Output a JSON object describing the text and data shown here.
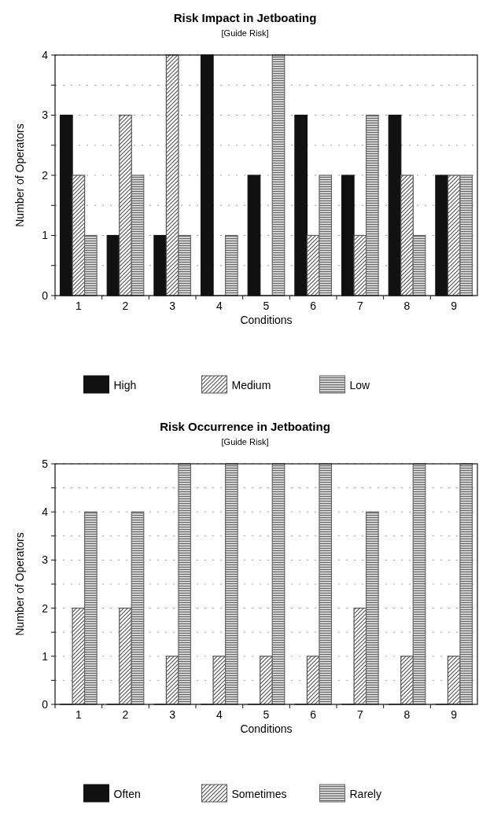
{
  "chart_data": [
    {
      "type": "bar",
      "title": "Risk Impact in Jetboating",
      "subtitle": "[Guide Risk]",
      "xlabel": "Conditions",
      "ylabel": "Number of Operators",
      "categories": [
        "1",
        "2",
        "3",
        "4",
        "5",
        "6",
        "7",
        "8",
        "9"
      ],
      "series": [
        {
          "name": "High",
          "color": "#111111",
          "values": [
            3,
            1,
            1,
            4,
            2,
            3,
            2,
            3,
            2
          ]
        },
        {
          "name": "Medium",
          "color": "#555555",
          "values": [
            2,
            3,
            4,
            0,
            0,
            1,
            1,
            2,
            2
          ]
        },
        {
          "name": "Low",
          "color": "#666666",
          "values": [
            1,
            2,
            1,
            1,
            4,
            2,
            3,
            1,
            2
          ]
        }
      ],
      "ylim": [
        0,
        4
      ],
      "yticks": [
        0,
        {
          "value": 0.5,
          "label": null
        },
        1,
        {
          "value": 1.5,
          "label": null
        },
        2,
        {
          "value": 2.5,
          "label": null
        },
        3,
        {
          "value": 3.5,
          "label": null
        },
        4
      ],
      "grid": "y",
      "legend": "bottom"
    },
    {
      "type": "bar",
      "title": "Risk Occurrence in Jetboating",
      "subtitle": "[Guide Risk]",
      "xlabel": "Conditions",
      "ylabel": "Number of Operators",
      "categories": [
        "1",
        "2",
        "3",
        "4",
        "5",
        "6",
        "7",
        "8",
        "9"
      ],
      "series": [
        {
          "name": "Often",
          "color": "#111111",
          "values": [
            0,
            0,
            0,
            0,
            0,
            0,
            0,
            0,
            0
          ]
        },
        {
          "name": "Sometimes",
          "color": "#555555",
          "values": [
            2,
            2,
            1,
            1,
            1,
            1,
            2,
            1,
            1
          ]
        },
        {
          "name": "Rarely",
          "color": "#666666",
          "values": [
            4,
            4,
            5,
            5,
            5,
            5,
            4,
            5,
            5
          ]
        }
      ],
      "ylim": [
        0,
        5
      ],
      "yticks": [
        0,
        {
          "value": 0.5,
          "label": null
        },
        1,
        {
          "value": 1.5,
          "label": null
        },
        2,
        {
          "value": 2.5,
          "label": null
        },
        3,
        {
          "value": 3.5,
          "label": null
        },
        4,
        {
          "value": 4.5,
          "label": null
        },
        5
      ],
      "grid": "y",
      "legend": "bottom"
    }
  ]
}
